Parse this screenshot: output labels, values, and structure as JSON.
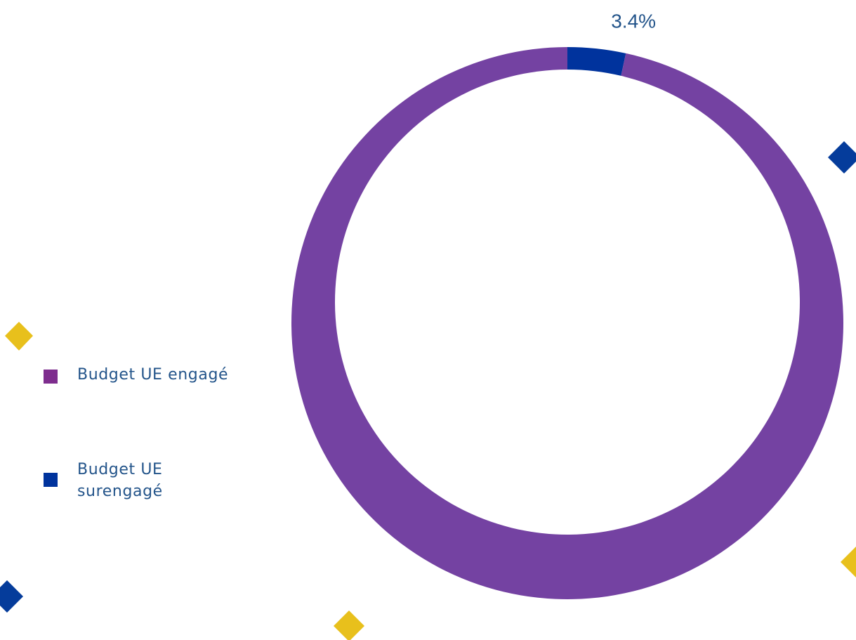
{
  "chart_data": {
    "type": "pie",
    "variant": "donut",
    "categories": [
      "Budget UE engagé",
      "Budget UE surengagé"
    ],
    "values": [
      96.6,
      3.4
    ],
    "unit": "%",
    "data_labels": [
      null,
      "3.4%"
    ],
    "legend_position": "left",
    "colors": [
      "#7442a2",
      "#00339d"
    ],
    "legend_colors": [
      "#7e2d8e",
      "#00339d"
    ],
    "label_color": "#23548a"
  },
  "decorations": {
    "diamond_colors": [
      "#e8c01c",
      "#053c9b"
    ],
    "icon_names": [
      "yellow-diamond-icon",
      "blue-diamond-icon"
    ]
  }
}
